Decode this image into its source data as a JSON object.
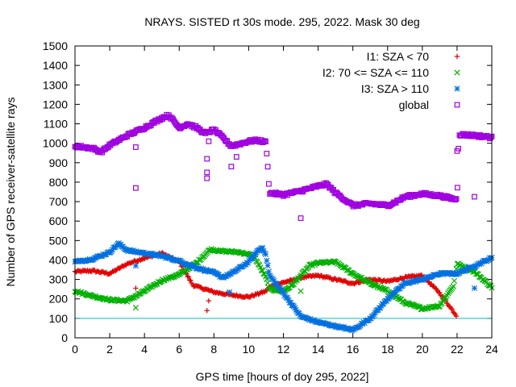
{
  "chart_data": {
    "type": "scatter",
    "title": "NRAYS. SISTED rt 30s mode. 295, 2022. Mask 30 deg",
    "xlabel": "GPS time [hours of doy 295, 2022]",
    "ylabel": "Number of GPS receiver-satellite rays",
    "xlim": [
      0,
      24
    ],
    "ylim": [
      0,
      1500
    ],
    "xticks": [
      0,
      2,
      4,
      6,
      8,
      10,
      12,
      14,
      16,
      18,
      20,
      22,
      24
    ],
    "yticks": [
      0,
      100,
      200,
      300,
      400,
      500,
      600,
      700,
      800,
      900,
      1000,
      1100,
      1200,
      1300,
      1400,
      1500
    ],
    "legend_position": "top-right",
    "reference_line": {
      "y": 100,
      "color": "#00c0c0"
    },
    "series": [
      {
        "name": "I1: SZA < 70",
        "color": "#e00000",
        "marker": "+",
        "knots": [
          [
            0,
            340
          ],
          [
            1,
            345
          ],
          [
            2,
            330
          ],
          [
            3,
            380
          ],
          [
            4,
            410
          ],
          [
            5,
            435
          ],
          [
            6,
            390
          ],
          [
            6.8,
            270
          ],
          [
            7.5,
            250
          ],
          [
            8,
            235
          ],
          [
            9,
            220
          ],
          [
            10,
            210
          ],
          [
            11,
            240
          ],
          [
            11.2,
            260
          ],
          [
            12,
            285
          ],
          [
            12.5,
            295
          ],
          [
            13,
            310
          ],
          [
            14,
            320
          ],
          [
            15,
            300
          ],
          [
            16,
            280
          ],
          [
            17,
            300
          ],
          [
            18,
            290
          ],
          [
            19,
            310
          ],
          [
            20,
            320
          ],
          [
            21,
            230
          ],
          [
            22,
            110
          ]
        ],
        "outliers": [
          [
            3.5,
            255
          ],
          [
            7.6,
            140
          ],
          [
            7.7,
            190
          ]
        ]
      },
      {
        "name": "I2: 70 <= SZA <= 110",
        "color": "#00b000",
        "marker": "x",
        "knots": [
          [
            0,
            240
          ],
          [
            1,
            215
          ],
          [
            2,
            195
          ],
          [
            3,
            190
          ],
          [
            4,
            240
          ],
          [
            5,
            295
          ],
          [
            6,
            325
          ],
          [
            7,
            385
          ],
          [
            7.8,
            455
          ],
          [
            8.5,
            445
          ],
          [
            9.5,
            440
          ],
          [
            10.3,
            420
          ],
          [
            11,
            310
          ],
          [
            11.2,
            250
          ],
          [
            12,
            240
          ],
          [
            12.5,
            270
          ],
          [
            13,
            320
          ],
          [
            13.5,
            370
          ],
          [
            14,
            385
          ],
          [
            15,
            390
          ],
          [
            16,
            330
          ],
          [
            17,
            280
          ],
          [
            18,
            240
          ],
          [
            19,
            180
          ],
          [
            20,
            150
          ],
          [
            21,
            165
          ],
          [
            21.8,
            270
          ],
          [
            22,
            380
          ],
          [
            23,
            340
          ],
          [
            24,
            260
          ]
        ],
        "outliers": [
          [
            3.5,
            155
          ],
          [
            13,
            240
          ]
        ]
      },
      {
        "name": "I3: SZA > 110",
        "color": "#0070e0",
        "marker": "*",
        "knots": [
          [
            0,
            390
          ],
          [
            1,
            405
          ],
          [
            2,
            440
          ],
          [
            2.5,
            485
          ],
          [
            3,
            450
          ],
          [
            4,
            435
          ],
          [
            5,
            420
          ],
          [
            6,
            395
          ],
          [
            7,
            360
          ],
          [
            8,
            335
          ],
          [
            8.5,
            310
          ],
          [
            9,
            330
          ],
          [
            10,
            390
          ],
          [
            10.5,
            445
          ],
          [
            10.8,
            465
          ],
          [
            11,
            420
          ],
          [
            11.2,
            320
          ],
          [
            12,
            230
          ],
          [
            13,
            110
          ],
          [
            14,
            80
          ],
          [
            15,
            60
          ],
          [
            16,
            40
          ],
          [
            17,
            100
          ],
          [
            18,
            200
          ],
          [
            19,
            280
          ],
          [
            20,
            300
          ],
          [
            21,
            330
          ],
          [
            22,
            330
          ],
          [
            23,
            370
          ],
          [
            24,
            410
          ]
        ],
        "outliers": [
          [
            3.5,
            370
          ],
          [
            8.9,
            235
          ],
          [
            23,
            255
          ]
        ]
      },
      {
        "name": "global",
        "color": "#a000e0",
        "marker": "square",
        "knots": [
          [
            0,
            985
          ],
          [
            1,
            975
          ],
          [
            1.5,
            955
          ],
          [
            2,
            990
          ],
          [
            3,
            1040
          ],
          [
            4,
            1080
          ],
          [
            5,
            1130
          ],
          [
            5.4,
            1145
          ],
          [
            6,
            1080
          ],
          [
            6.5,
            1100
          ],
          [
            7,
            1080
          ],
          [
            7.5,
            1050
          ],
          [
            8,
            1070
          ],
          [
            8.5,
            1030
          ],
          [
            9,
            985
          ],
          [
            10,
            1010
          ],
          [
            10.5,
            1015
          ],
          [
            11,
            1005
          ],
          [
            11.2,
            745
          ],
          [
            12,
            735
          ],
          [
            13,
            755
          ],
          [
            14,
            780
          ],
          [
            14.5,
            790
          ],
          [
            15,
            745
          ],
          [
            16,
            680
          ],
          [
            17,
            690
          ],
          [
            18,
            680
          ],
          [
            18.5,
            700
          ],
          [
            19,
            725
          ],
          [
            20,
            740
          ],
          [
            21,
            730
          ],
          [
            22,
            710
          ],
          [
            22.1,
            1045
          ],
          [
            23,
            1040
          ],
          [
            24,
            1030
          ]
        ],
        "outliers": [
          [
            3.5,
            770
          ],
          [
            3.5,
            980
          ],
          [
            7.6,
            820
          ],
          [
            7.6,
            850
          ],
          [
            7.6,
            920
          ],
          [
            7.7,
            1010
          ],
          [
            9,
            880
          ],
          [
            9.3,
            930
          ],
          [
            13,
            615
          ],
          [
            22,
            960
          ],
          [
            23,
            725
          ]
        ]
      }
    ]
  }
}
